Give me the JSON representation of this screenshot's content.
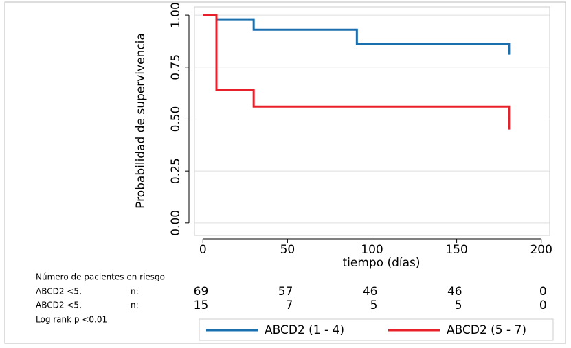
{
  "chart_data": {
    "type": "step",
    "xlabel": "tiempo (días)",
    "ylabel": "Probabilidad de supervivencia",
    "xlim": [
      -5,
      205
    ],
    "ylim": [
      -0.06,
      1.04
    ],
    "xticks": [
      0,
      50,
      100,
      150,
      200
    ],
    "yticks": [
      {
        "value": 0,
        "label": "0.00"
      },
      {
        "value": 0.25,
        "label": "0.25"
      },
      {
        "value": 0.5,
        "label": "0.50"
      },
      {
        "value": 0.75,
        "label": "0.75"
      },
      {
        "value": 1,
        "label": "1.00"
      }
    ],
    "grid": true,
    "step": "post",
    "series": [
      {
        "name": "ABCD2 (1 - 4)",
        "color": "#1a6faf",
        "x": [
          0,
          8,
          30,
          91,
          181
        ],
        "values": [
          1.0,
          0.98,
          0.93,
          0.86,
          0.81
        ]
      },
      {
        "name": "ABCD2 (5 - 7)",
        "color": "#e8202a",
        "x": [
          0,
          8,
          30,
          181
        ],
        "values": [
          1.0,
          0.64,
          0.56,
          0.45
        ]
      }
    ],
    "risk_table": {
      "title": "Número de pacientes en riesgo",
      "rows": [
        {
          "label": "ABCD2 <5,",
          "n_label": "n:",
          "counts": [
            69,
            57,
            46,
            46,
            0
          ]
        },
        {
          "label": "ABCD2 <5,",
          "n_label": "n:",
          "counts": [
            15,
            7,
            5,
            5,
            0
          ]
        }
      ]
    },
    "note": "Log rank p <0.01",
    "legend": "bottom"
  }
}
